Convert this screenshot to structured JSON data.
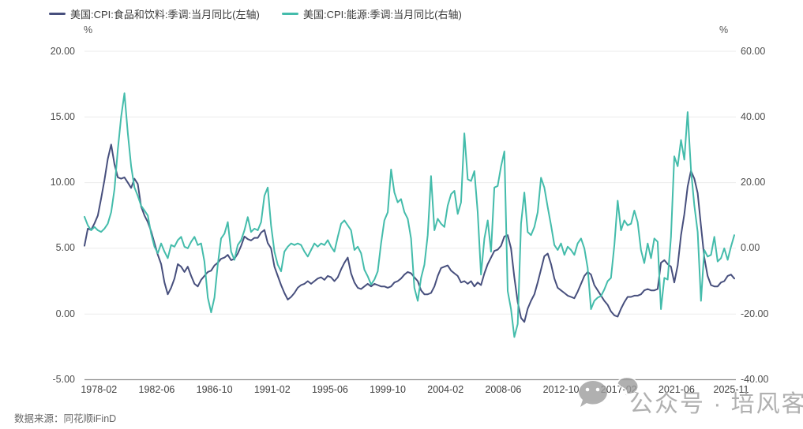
{
  "legend": [
    {
      "label": "美国:CPI:食品和饮料:季调:当月同比(左轴)",
      "color": "#474f7d"
    },
    {
      "label": "美国:CPI:能源:季调:当月同比(右轴)",
      "color": "#44bcab"
    }
  ],
  "left_axis": {
    "unit": "%",
    "ticks": [
      "20.00",
      "15.00",
      "10.00",
      "5.00",
      "0.00",
      "-5.00"
    ],
    "max": 20,
    "min": -5
  },
  "right_axis": {
    "unit": "%",
    "ticks": [
      "60.00",
      "40.00",
      "20.00",
      "0.00",
      "-20.00",
      "-40.00"
    ],
    "max": 60,
    "min": -40
  },
  "x_axis": {
    "ticks": [
      "1978-02",
      "1982-06",
      "1986-10",
      "1991-02",
      "1995-06",
      "1999-10",
      "2004-02",
      "2008-06",
      "2012-10",
      "2017-02",
      "2021-06",
      "2025-11"
    ]
  },
  "source": "数据来源：同花顺iFinD",
  "watermark": {
    "text": "公众号 · 培风客",
    "icon": "wechat-icon"
  },
  "colors": {
    "grid": "#ebebeb",
    "axis_line": "#8c8c8c",
    "food_line": "#474f7d",
    "energy_line": "#44bcab"
  },
  "chart_data": {
    "type": "line",
    "x_start": "1977-01",
    "x_end": "2025-11",
    "sampling": "quarterly",
    "grid": "horizontal-only",
    "legend_position": "top-left",
    "left_ylim": [
      -5,
      20
    ],
    "right_ylim": [
      -40,
      60
    ],
    "x_tick_labels": [
      "1978-02",
      "1982-06",
      "1986-10",
      "1991-02",
      "1995-06",
      "1999-10",
      "2004-02",
      "2008-06",
      "2012-10",
      "2017-02",
      "2021-06",
      "2025-11"
    ],
    "series": [
      {
        "name": "美国:CPI:食品和饮料:季调:当月同比(左轴)",
        "axis": "left",
        "color": "#474f7d",
        "values": [
          5.2,
          6.5,
          6.4,
          6.9,
          7.5,
          8.8,
          10.2,
          11.8,
          12.9,
          11.4,
          10.4,
          10.3,
          10.4,
          10.0,
          9.6,
          10.3,
          9.9,
          8.2,
          7.5,
          7.0,
          6.3,
          5.4,
          4.5,
          3.8,
          2.4,
          1.5,
          2.0,
          2.7,
          3.8,
          3.6,
          3.2,
          3.6,
          2.9,
          2.3,
          2.1,
          2.6,
          2.9,
          3.2,
          3.3,
          3.7,
          3.9,
          4.2,
          4.3,
          4.5,
          4.1,
          4.2,
          4.6,
          5.2,
          5.9,
          5.7,
          5.6,
          5.8,
          5.8,
          6.2,
          6.4,
          5.4,
          5.0,
          3.6,
          2.9,
          2.2,
          1.6,
          1.1,
          1.3,
          1.6,
          2.0,
          2.2,
          2.3,
          2.5,
          2.3,
          2.5,
          2.7,
          2.8,
          2.6,
          2.9,
          2.8,
          2.5,
          2.8,
          3.4,
          3.9,
          4.3,
          3.1,
          2.4,
          2.0,
          1.9,
          2.1,
          2.3,
          2.1,
          2.3,
          2.2,
          2.1,
          2.1,
          2.0,
          2.1,
          2.4,
          2.5,
          2.7,
          3.0,
          3.2,
          3.1,
          2.8,
          2.5,
          1.8,
          1.5,
          1.5,
          1.6,
          2.1,
          2.9,
          3.5,
          3.6,
          3.7,
          3.3,
          3.1,
          2.9,
          2.4,
          2.5,
          2.3,
          2.5,
          2.1,
          2.4,
          2.2,
          3.1,
          3.8,
          4.3,
          4.8,
          4.9,
          5.2,
          5.9,
          6.0,
          5.0,
          2.8,
          0.9,
          -0.3,
          -0.6,
          0.4,
          1.0,
          1.5,
          2.4,
          3.4,
          4.4,
          4.6,
          3.8,
          2.7,
          2.0,
          1.8,
          1.6,
          1.4,
          1.3,
          1.2,
          1.7,
          2.3,
          2.9,
          3.2,
          3.0,
          2.2,
          1.8,
          1.4,
          1.0,
          0.7,
          0.2,
          -0.1,
          -0.2,
          0.4,
          0.9,
          1.3,
          1.3,
          1.4,
          1.4,
          1.5,
          1.8,
          1.9,
          1.8,
          1.8,
          1.9,
          3.9,
          4.1,
          3.8,
          3.6,
          2.4,
          3.7,
          6.0,
          7.6,
          9.7,
          10.9,
          10.3,
          9.2,
          6.7,
          4.3,
          2.9,
          2.2,
          2.1,
          2.1,
          2.4,
          2.5,
          2.9,
          3.0,
          2.7
        ]
      },
      {
        "name": "美国:CPI:能源:季调:当月同比(右轴)",
        "axis": "right",
        "color": "#44bcab",
        "values": [
          9.6,
          7.0,
          5.5,
          6.5,
          5.5,
          5.0,
          6.0,
          7.5,
          11.0,
          18.0,
          30.0,
          40.0,
          47.2,
          35.0,
          25.0,
          18.5,
          16.0,
          13.0,
          11.5,
          10.0,
          4.5,
          0.5,
          -1.5,
          1.5,
          -1.0,
          -3.0,
          1.0,
          0.5,
          2.5,
          3.5,
          0.5,
          0.0,
          2.0,
          3.5,
          1.0,
          1.5,
          -4.0,
          -15.0,
          -19.5,
          -15.0,
          -5.0,
          3.0,
          4.5,
          8.0,
          -1.0,
          -3.5,
          1.0,
          2.5,
          5.5,
          9.5,
          5.0,
          6.0,
          5.5,
          8.0,
          16.0,
          18.5,
          7.0,
          -1.0,
          -5.0,
          -7.0,
          -1.0,
          0.5,
          1.5,
          1.0,
          1.5,
          1.0,
          -1.0,
          -2.5,
          -0.5,
          1.5,
          0.5,
          1.5,
          1.0,
          2.5,
          0.5,
          -1.0,
          3.5,
          7.5,
          8.5,
          7.0,
          5.5,
          -0.5,
          0.5,
          -1.5,
          -6.5,
          -8.5,
          -11.0,
          -9.5,
          -7.0,
          1.5,
          8.5,
          11.0,
          24.0,
          17.0,
          14.0,
          15.0,
          11.0,
          9.0,
          3.0,
          -12.0,
          -16.0,
          -9.0,
          -5.0,
          4.0,
          22.0,
          5.5,
          9.0,
          7.5,
          6.5,
          13.0,
          16.5,
          17.5,
          10.5,
          14.0,
          35.0,
          21.0,
          20.5,
          23.5,
          11.0,
          -8.0,
          3.0,
          8.5,
          -1.0,
          18.5,
          19.0,
          25.0,
          29.5,
          -13.0,
          -18.5,
          -27.0,
          -23.0,
          7.5,
          17.0,
          5.0,
          4.0,
          6.5,
          11.0,
          21.5,
          18.5,
          12.5,
          7.0,
          1.0,
          -0.5,
          1.5,
          -2.0,
          0.5,
          -0.5,
          -2.0,
          1.5,
          3.0,
          0.0,
          -6.0,
          -18.5,
          -16.0,
          -15.0,
          -14.5,
          -12.5,
          -10.0,
          -9.0,
          1.0,
          14.5,
          5.5,
          8.5,
          7.0,
          7.5,
          11.5,
          8.0,
          -0.5,
          -4.5,
          1.5,
          -3.0,
          3.0,
          2.0,
          -18.5,
          -9.0,
          -9.5,
          3.5,
          28.0,
          25.0,
          33.0,
          27.0,
          41.5,
          24.0,
          13.0,
          5.0,
          -16.0,
          -0.5,
          -2.5,
          -2.0,
          3.5,
          -4.0,
          -3.0,
          0.0,
          -3.5,
          0.5,
          4.0
        ]
      }
    ]
  }
}
